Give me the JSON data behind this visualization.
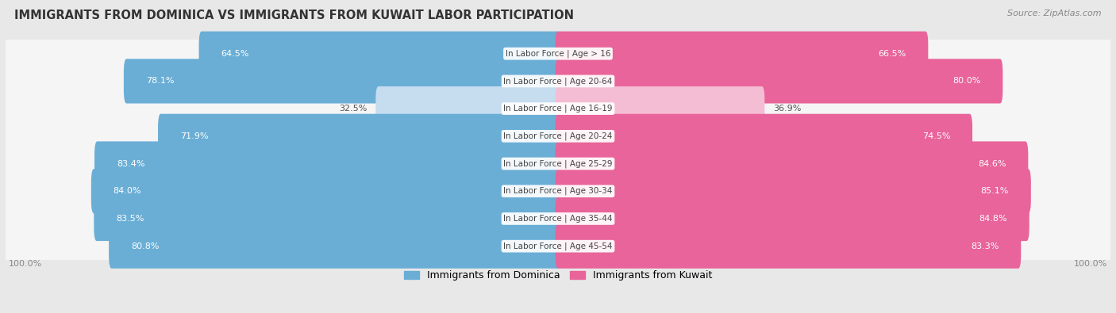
{
  "title": "IMMIGRANTS FROM DOMINICA VS IMMIGRANTS FROM KUWAIT LABOR PARTICIPATION",
  "source": "Source: ZipAtlas.com",
  "categories": [
    "In Labor Force | Age > 16",
    "In Labor Force | Age 20-64",
    "In Labor Force | Age 16-19",
    "In Labor Force | Age 20-24",
    "In Labor Force | Age 25-29",
    "In Labor Force | Age 30-34",
    "In Labor Force | Age 35-44",
    "In Labor Force | Age 45-54"
  ],
  "dominica_values": [
    64.5,
    78.1,
    32.5,
    71.9,
    83.4,
    84.0,
    83.5,
    80.8
  ],
  "kuwait_values": [
    66.5,
    80.0,
    36.9,
    74.5,
    84.6,
    85.1,
    84.8,
    83.3
  ],
  "dominica_color": "#6aaed6",
  "dominica_color_light": "#c6dcef",
  "kuwait_color": "#e8649a",
  "kuwait_color_light": "#f5bdd4",
  "max_val": 100.0,
  "bg_color": "#e8e8e8",
  "row_light_color": "#f5f5f5",
  "label_color_white": "#ffffff",
  "label_color_dark": "#555555",
  "legend_dominica": "Immigrants from Dominica",
  "legend_kuwait": "Immigrants from Kuwait",
  "title_fontsize": 10.5,
  "source_fontsize": 8,
  "bar_label_fontsize": 8,
  "category_label_fontsize": 7.5
}
